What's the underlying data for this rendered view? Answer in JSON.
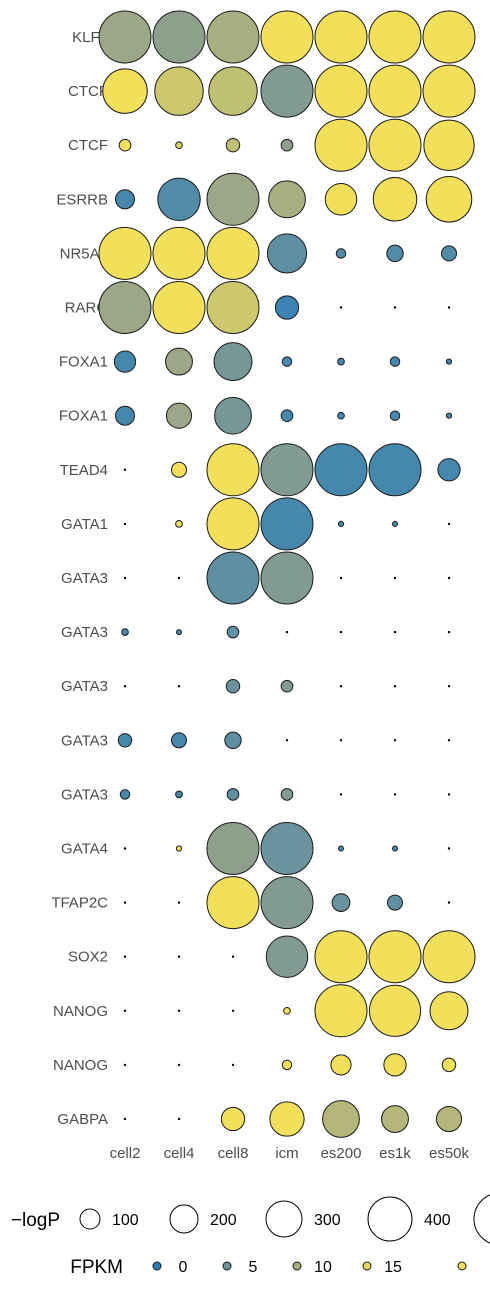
{
  "chart_data": {
    "type": "scatter",
    "title": "",
    "xlabel": "",
    "ylabel": "",
    "categories": [
      "cell2",
      "cell4",
      "cell8",
      "icm",
      "es200",
      "es1k",
      "es50k"
    ],
    "rows": [
      {
        "label": "KLF4",
        "size": [
          300,
          300,
          300,
          300,
          300,
          300,
          300
        ],
        "fpkm": [
          9,
          8,
          10,
          16,
          16,
          16,
          16
        ]
      },
      {
        "label": "CTCF",
        "size": [
          220,
          260,
          260,
          300,
          300,
          300,
          300
        ],
        "fpkm": [
          16,
          13,
          12,
          7,
          16,
          16,
          16
        ]
      },
      {
        "label": "CTCF",
        "size": [
          15,
          5,
          20,
          15,
          300,
          300,
          280
        ],
        "fpkm": [
          16,
          14,
          12,
          8,
          16,
          16,
          16
        ]
      },
      {
        "label": "ESRRB",
        "size": [
          40,
          200,
          300,
          150,
          110,
          210,
          230
        ],
        "fpkm": [
          2,
          3,
          9,
          10,
          16,
          16,
          16
        ]
      },
      {
        "label": "NR5A2",
        "size": [
          300,
          300,
          300,
          170,
          10,
          30,
          25
        ],
        "fpkm": [
          16,
          16,
          16,
          4,
          3,
          3,
          3
        ]
      },
      {
        "label": "RARG",
        "size": [
          300,
          300,
          300,
          60,
          0,
          0,
          0
        ],
        "fpkm": [
          9,
          16,
          13,
          1,
          0,
          0,
          0
        ]
      },
      {
        "label": "FOXA1",
        "size": [
          50,
          80,
          160,
          10,
          5,
          10,
          3
        ],
        "fpkm": [
          2,
          9,
          6,
          2,
          2,
          2,
          2
        ]
      },
      {
        "label": "FOXA1",
        "size": [
          40,
          70,
          150,
          15,
          5,
          10,
          3
        ],
        "fpkm": [
          2,
          9,
          6,
          2,
          2,
          2,
          2
        ]
      },
      {
        "label": "TEAD4",
        "size": [
          0,
          25,
          300,
          300,
          300,
          300,
          55
        ],
        "fpkm": [
          0,
          16,
          16,
          7,
          2,
          2,
          2
        ]
      },
      {
        "label": "GATA1",
        "size": [
          0,
          5,
          300,
          300,
          3,
          2,
          0
        ],
        "fpkm": [
          0,
          16,
          16,
          2,
          2,
          2,
          0
        ]
      },
      {
        "label": "GATA3",
        "size": [
          0,
          0,
          300,
          300,
          0,
          0,
          0
        ],
        "fpkm": [
          0,
          0,
          4,
          7,
          0,
          0,
          0
        ]
      },
      {
        "label": "GATA3",
        "size": [
          5,
          2,
          15,
          0,
          0,
          0,
          0
        ],
        "fpkm": [
          2,
          2,
          4,
          0,
          0,
          0,
          0
        ]
      },
      {
        "label": "GATA3",
        "size": [
          0,
          0,
          20,
          15,
          0,
          0,
          0
        ],
        "fpkm": [
          0,
          0,
          5,
          7,
          0,
          0,
          0
        ]
      },
      {
        "label": "GATA3",
        "size": [
          20,
          25,
          30,
          0,
          0,
          0,
          0
        ],
        "fpkm": [
          2,
          2,
          4,
          0,
          0,
          0,
          0
        ]
      },
      {
        "label": "GATA3",
        "size": [
          10,
          5,
          15,
          15,
          0,
          0,
          0
        ],
        "fpkm": [
          2,
          2,
          4,
          7,
          0,
          0,
          0
        ]
      },
      {
        "label": "GATA4",
        "size": [
          0,
          3,
          300,
          300,
          2,
          2,
          0
        ],
        "fpkm": [
          0,
          16,
          8,
          5,
          2,
          2,
          0
        ]
      },
      {
        "label": "TFAP2C",
        "size": [
          0,
          0,
          300,
          300,
          35,
          25,
          0
        ],
        "fpkm": [
          0,
          0,
          16,
          7,
          5,
          4,
          0
        ]
      },
      {
        "label": "SOX2",
        "size": [
          0,
          0,
          0,
          190,
          300,
          300,
          300
        ],
        "fpkm": [
          0,
          0,
          0,
          7,
          16,
          16,
          16
        ]
      },
      {
        "label": "NANOG",
        "size": [
          0,
          0,
          0,
          5,
          300,
          290,
          160
        ],
        "fpkm": [
          0,
          0,
          0,
          16,
          16,
          16,
          16
        ]
      },
      {
        "label": "NANOG",
        "size": [
          0,
          0,
          0,
          10,
          45,
          55,
          20
        ],
        "fpkm": [
          0,
          0,
          0,
          16,
          16,
          16,
          16
        ]
      },
      {
        "label": "GABPA",
        "size": [
          0,
          0,
          60,
          130,
          150,
          80,
          70
        ],
        "fpkm": [
          0,
          0,
          16,
          16,
          11,
          11,
          11
        ]
      }
    ],
    "size_legend": {
      "title": "−logP",
      "values": [
        100,
        200,
        300,
        400,
        500
      ],
      "labels": [
        "100",
        "200",
        "300",
        "400",
        ""
      ]
    },
    "color_legend": {
      "title": "FPKM",
      "values": [
        0,
        5,
        10,
        15,
        20
      ],
      "labels": [
        "0",
        "5",
        "10",
        "15",
        ""
      ]
    },
    "colors": {
      "low": "#2e7fb8",
      "mid": "#8e9f8c",
      "high": "#f2e05a",
      "stroke": "#1a1a1a"
    }
  }
}
